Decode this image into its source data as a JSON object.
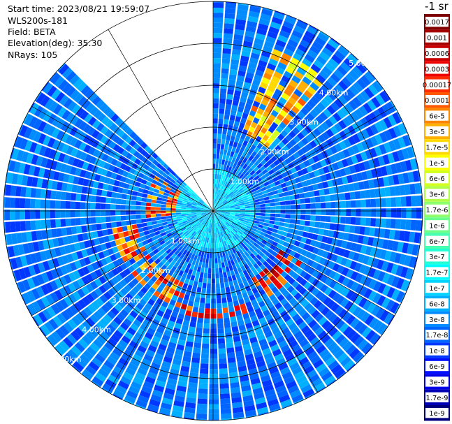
{
  "info": {
    "start_time": "Start time: 2023/08/21 19:59:07",
    "instrument": "WLS200s-181",
    "field": "Field: BETA",
    "elevation": "Elevation(deg): 35.30",
    "nrays": "NRays: 105"
  },
  "colorbar": {
    "unit_label": "-1 sr",
    "ticks": [
      "0.0017",
      "0.001",
      "0.0006",
      "0.0003",
      "0.00017",
      "0.0001",
      "6e-5",
      "3e-5",
      "1.7e-5",
      "1e-5",
      "6e-6",
      "3e-6",
      "1.7e-6",
      "1e-6",
      "6e-7",
      "3e-7",
      "1.7e-7",
      "1e-7",
      "6e-8",
      "3e-8",
      "1.7e-8",
      "1e-8",
      "6e-9",
      "3e-9",
      "1.7e-9",
      "1e-9"
    ],
    "colors": [
      "#7f0000",
      "#a40000",
      "#c80000",
      "#ee0000",
      "#ff2a00",
      "#ff5800",
      "#ff8600",
      "#ffb000",
      "#ffd900",
      "#fbff00",
      "#d4ff23",
      "#b0ff46",
      "#8cff6b",
      "#6bff8c",
      "#46ffb0",
      "#23ffd4",
      "#00fbff",
      "#00d4ff",
      "#00b0ff",
      "#008cff",
      "#0064ff",
      "#0038ff",
      "#0010ff",
      "#0000e8",
      "#0000b4",
      "#00007f"
    ]
  },
  "chart_data": {
    "type": "heatmap",
    "projection": "polar PPI",
    "field": "BETA",
    "elevation_deg": 35.3,
    "n_rays": 105,
    "range_rings_km": [
      1.0,
      2.0,
      3.0,
      4.0,
      5.0
    ],
    "range_ring_labels": [
      "1.00km",
      "2.00km",
      "3.00km",
      "4.00km",
      "5.00km"
    ],
    "max_range_km": 5.0,
    "color_scale": "log",
    "value_range": [
      1e-09,
      0.0017
    ],
    "unit": "-1 sr",
    "background_level": 3e-08,
    "features": [
      {
        "description": "ring of enhanced backscatter south-west arc",
        "azimuth_deg": [
          200,
          260
        ],
        "range_km": [
          1.8,
          2.4
        ],
        "level": 0.0001
      },
      {
        "description": "enhanced arc south",
        "azimuth_deg": [
          160,
          200
        ],
        "range_km": [
          2.3,
          2.6
        ],
        "level": 0.0003
      },
      {
        "description": "enhanced patches west",
        "azimuth_deg": [
          265,
          300
        ],
        "range_km": [
          0.9,
          1.6
        ],
        "level": 0.0001
      },
      {
        "description": "enhanced patch north-east",
        "azimuth_deg": [
          20,
          40
        ],
        "range_km": [
          2.0,
          4.1
        ],
        "level": 3e-05
      },
      {
        "description": "enhanced patches south-east",
        "azimuth_deg": [
          120,
          150
        ],
        "range_km": [
          1.8,
          2.4
        ],
        "level": 0.0003
      }
    ],
    "missing_sector_deg": [
      315,
      360
    ]
  }
}
